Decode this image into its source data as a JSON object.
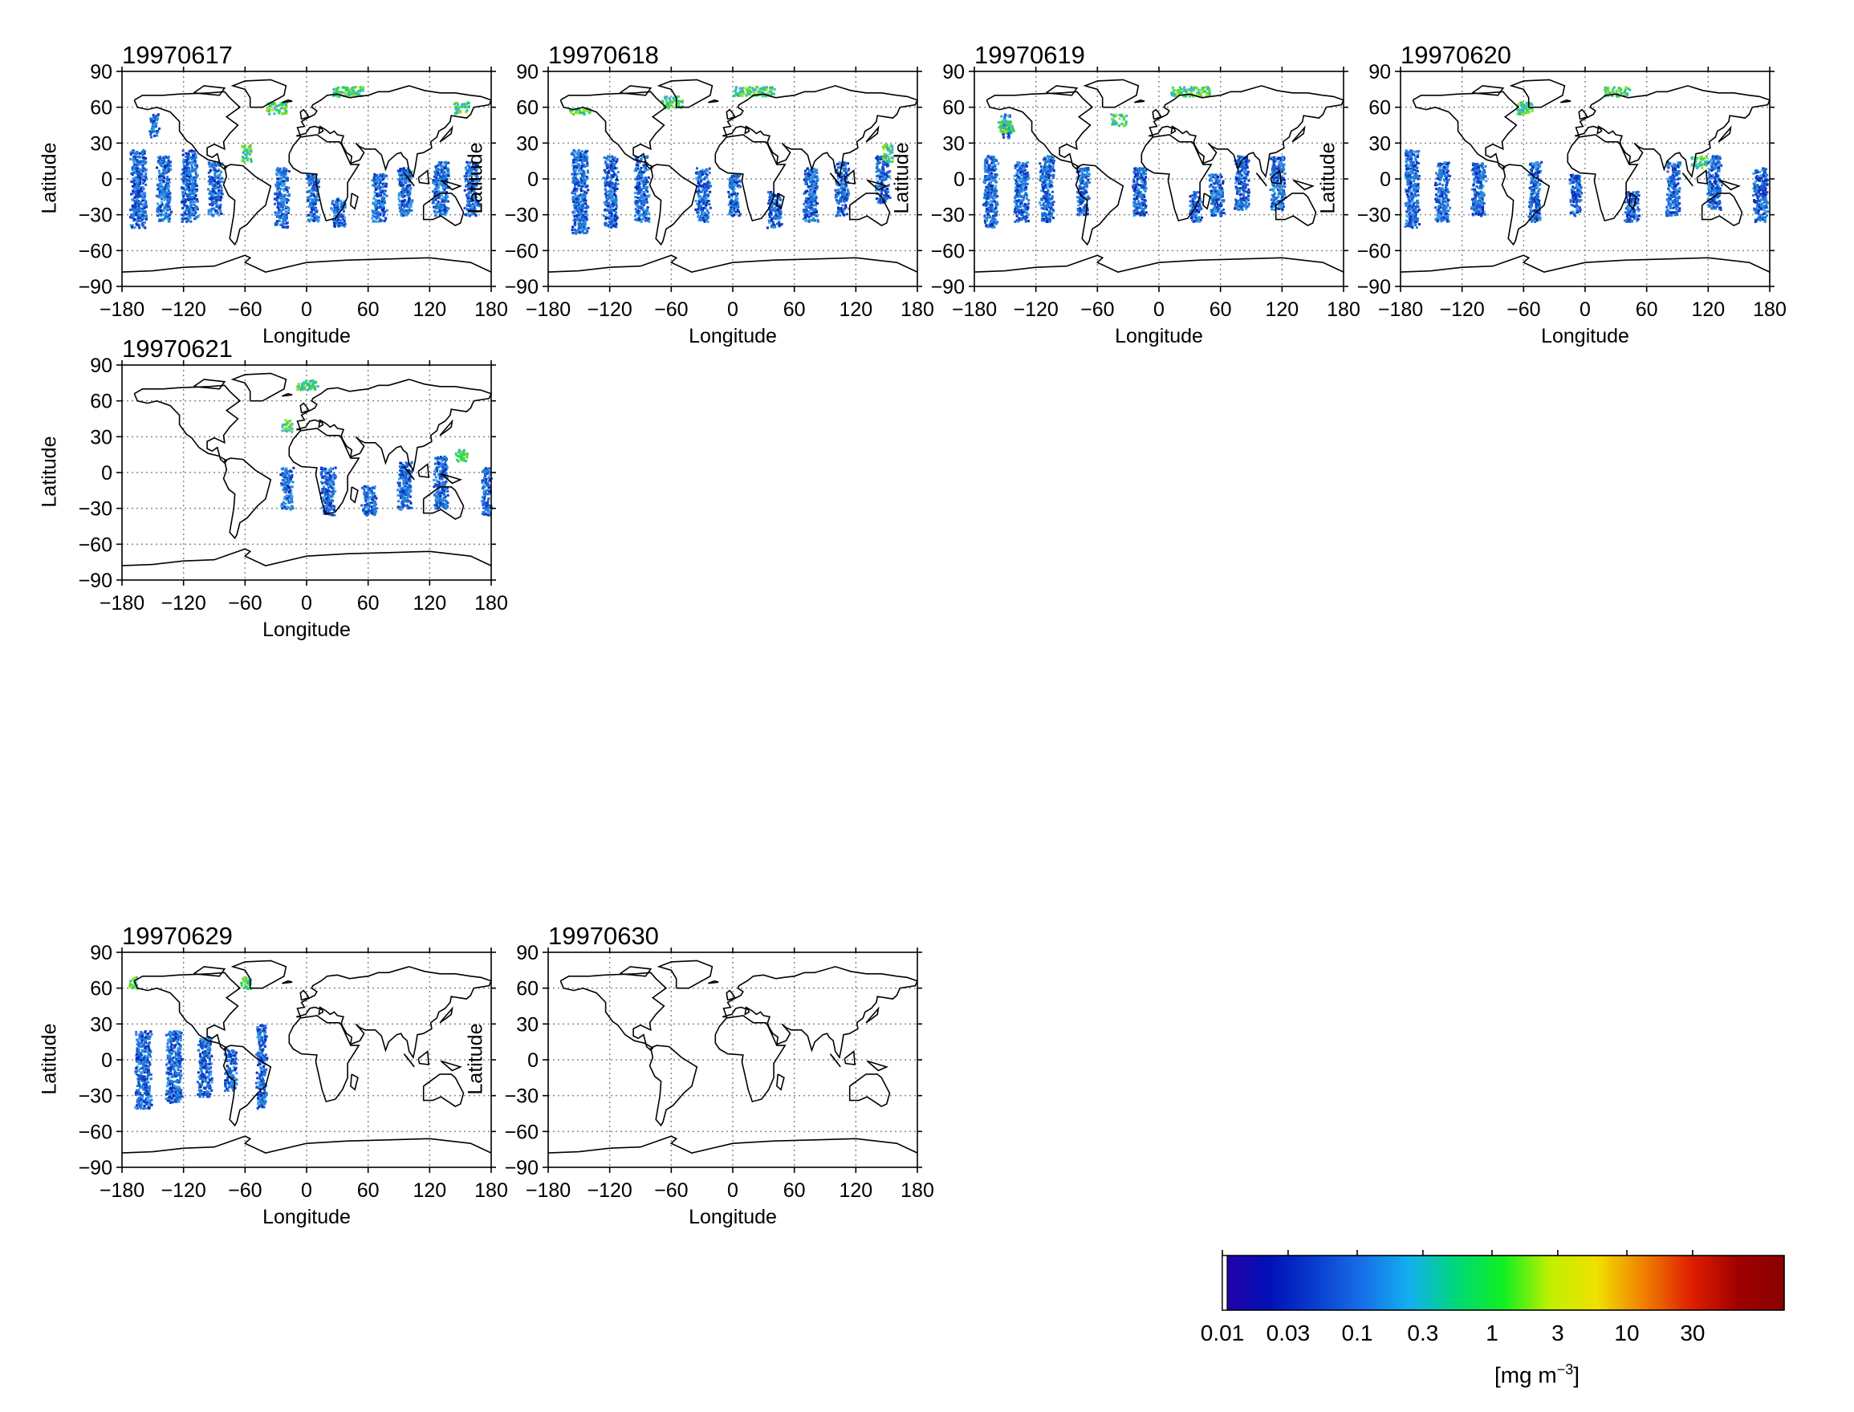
{
  "figure": {
    "x_axis_label": "Longitude",
    "y_axis_label": "Latitude",
    "x_ticks": [
      "−180",
      "−120",
      "−60",
      "0",
      "60",
      "120",
      "180"
    ],
    "y_ticks": [
      "90",
      "60",
      "30",
      "0",
      "−30",
      "−60",
      "−90"
    ],
    "x_tick_values": [
      -180,
      -120,
      -60,
      0,
      60,
      120,
      180
    ],
    "y_tick_values": [
      90,
      60,
      30,
      0,
      -30,
      -60,
      -90
    ],
    "grid": "dotted",
    "panels": [
      {
        "date": "19970617",
        "coverage": "global ocean swaths"
      },
      {
        "date": "19970618",
        "coverage": "global ocean swaths"
      },
      {
        "date": "19970619",
        "coverage": "global ocean swaths"
      },
      {
        "date": "19970620",
        "coverage": "global ocean swaths"
      },
      {
        "date": "19970621",
        "coverage": "eastern hemisphere swaths"
      },
      {
        "date": "19970629",
        "coverage": "eastern pacific swaths"
      },
      {
        "date": "19970630",
        "coverage": "almost no data"
      }
    ]
  },
  "colorbar": {
    "tick_labels": [
      "0.01",
      "0.03",
      "0.1",
      "0.3",
      "1",
      "3",
      "10",
      "30"
    ],
    "unit_prefix": "[mg m",
    "unit_exponent": "−3",
    "unit_suffix": "]",
    "scale": "log",
    "colors": [
      "#2a00a8",
      "#0010b8",
      "#0a3ed0",
      "#1670e8",
      "#12b0f0",
      "#00d878",
      "#10f020",
      "#c0f000",
      "#f0e000",
      "#f08000",
      "#e02000",
      "#a00000",
      "#8a0000"
    ]
  },
  "chart_data": {
    "type": "heatmap",
    "description_axis": "lon-lat maps",
    "xlabel": "Longitude",
    "ylabel": "Latitude",
    "xlim": [
      -180,
      180
    ],
    "ylim": [
      -90,
      90
    ],
    "panels": [
      "19970617",
      "19970618",
      "19970619",
      "19970620",
      "19970621",
      "19970629",
      "19970630"
    ],
    "colorbar_scale": "log",
    "colorbar_ticks": [
      0.01,
      0.03,
      0.1,
      0.3,
      1,
      3,
      10,
      30
    ]
  }
}
